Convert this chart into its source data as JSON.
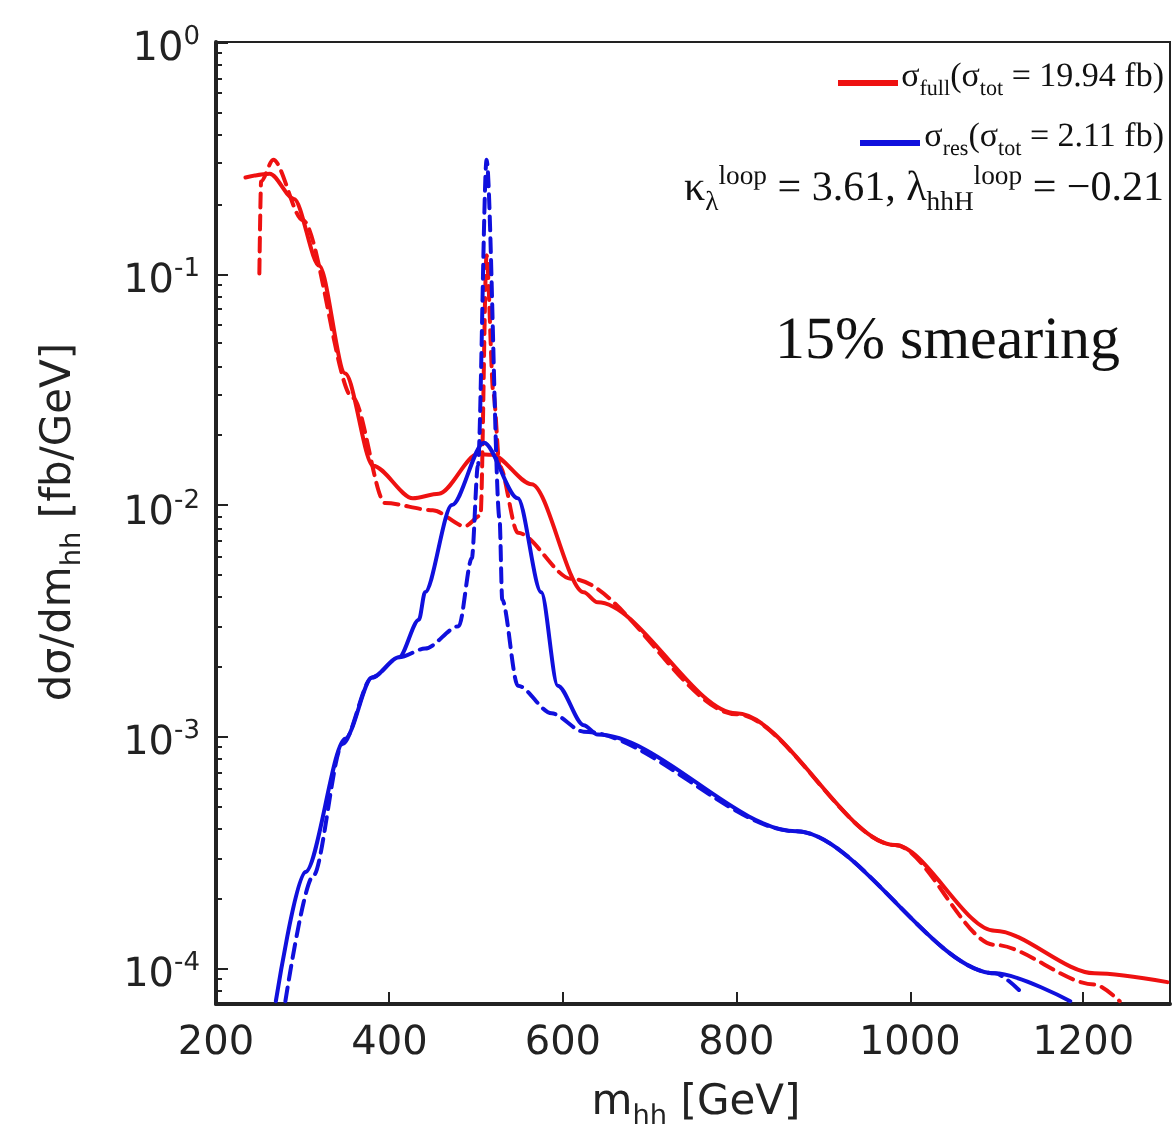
{
  "chart_data": {
    "type": "line",
    "xlabel": "m$_{hh}$ [GeV]",
    "ylabel": "dσ/dm$_{hh}$ [fb/GeV]",
    "log": "y",
    "legend": "top right",
    "marker": "none",
    "xlim": [
      200,
      1300
    ],
    "xticks": [
      200,
      400,
      600,
      800,
      1000,
      1200
    ],
    "ylim": [
      7e-05,
      1
    ],
    "yticks": [
      {
        "value": 0.0001,
        "label": "10$^{-4}$"
      },
      {
        "value": 0.001,
        "label": "10$^{-3}$"
      },
      {
        "value": 0.01,
        "label": "10$^{-2}$"
      },
      {
        "value": 0.1,
        "label": "10$^{-1}$"
      },
      {
        "value": 1,
        "label": "10$^{0}$"
      }
    ],
    "annotations": [
      "κ$_{λ}$$^{loop}$ = 3.61, λ$_{hhH}$$^{loop}$ = −0.21",
      "15% smearing"
    ],
    "series": [
      {
        "name": "σ$_{full}$(σ$_{tot}$ = 19.94 fb)",
        "color": "#ee1111",
        "line_style": "solid",
        "x": [
          234,
          262,
          290,
          319,
          349,
          381,
          427,
          457,
          502,
          518,
          564,
          624,
          640,
          800,
          983,
          1098,
          1213,
          1297
        ],
        "values": [
          0.26,
          0.27,
          0.21,
          0.108,
          0.037,
          0.0148,
          0.0107,
          0.0112,
          0.0166,
          0.0165,
          0.0123,
          0.0042,
          0.0038,
          0.00126,
          0.00034,
          0.000145,
          9.5e-05,
          8.7e-05
        ]
      },
      {
        "color": "#ee1111",
        "line_style": "dashed",
        "x": [
          250,
          252,
          266,
          300,
          358,
          395,
          450,
          487,
          505,
          512,
          520,
          527,
          548,
          610,
          800,
          983,
          1098,
          1213,
          1242
        ],
        "values": [
          0.1,
          0.25,
          0.31,
          0.17,
          0.029,
          0.0102,
          0.0095,
          0.0081,
          0.009,
          0.12,
          0.03,
          0.0148,
          0.0076,
          0.0048,
          0.00125,
          0.00034,
          0.000126,
          8.5e-05,
          7.2e-05
        ]
      },
      {
        "name": "σ$_{res}$(σ$_{tot}$ = 2.11 fb)",
        "color": "#1010dd",
        "line_style": "solid",
        "x": [
          269,
          303,
          349,
          380,
          411,
          434,
          441,
          472,
          509,
          548,
          575,
          594,
          624,
          640,
          869,
          1098,
          1185
        ],
        "values": [
          7.2e-05,
          0.00026,
          0.00098,
          0.0018,
          0.0022,
          0.0032,
          0.0042,
          0.01,
          0.0186,
          0.0107,
          0.0042,
          0.00166,
          0.00112,
          0.00102,
          0.00039,
          9.5e-05,
          7.2e-05
        ]
      },
      {
        "color": "#1010dd",
        "line_style": "dashed",
        "x": [
          280,
          312,
          346,
          380,
          411,
          441,
          480,
          495,
          502,
          512,
          527,
          530,
          548,
          587,
          624,
          869,
          1098,
          1128
        ],
        "values": [
          7.2e-05,
          0.00025,
          0.00093,
          0.0018,
          0.0022,
          0.0024,
          0.003,
          0.0059,
          0.0148,
          0.31,
          0.0087,
          0.0039,
          0.00166,
          0.00126,
          0.00105,
          0.00039,
          9.5e-05,
          7.9e-05
        ]
      }
    ]
  }
}
